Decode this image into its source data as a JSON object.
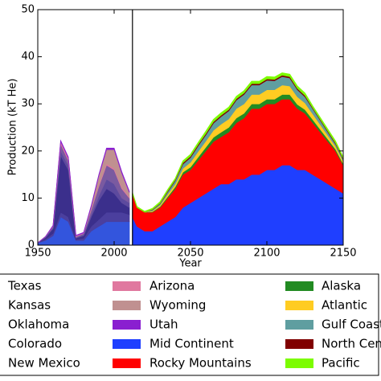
{
  "chart_data": {
    "type": "stacked_area",
    "xlabel": "Year",
    "ylabel": "Production (kT He)",
    "x": [
      1950,
      1955,
      1960,
      1965,
      1970,
      1975,
      1980,
      1985,
      1990,
      1995,
      2000,
      2005,
      2010,
      2012,
      2015,
      2020,
      2025,
      2030,
      2035,
      2040,
      2045,
      2050,
      2055,
      2060,
      2065,
      2070,
      2075,
      2080,
      2085,
      2090,
      2095,
      2100,
      2105,
      2110,
      2115,
      2120,
      2125,
      2130,
      2135,
      2140,
      2145,
      2150
    ],
    "xlim": [
      1950,
      2150
    ],
    "xticks": [
      1950,
      2000,
      2050,
      2100,
      2150
    ],
    "ylim": [
      0,
      50
    ],
    "yticks": [
      0,
      10,
      20,
      30,
      40,
      50
    ],
    "vline": 2012,
    "series": [
      {
        "name": "Texas",
        "color": "#3355dd",
        "values": [
          0.5,
          1,
          2,
          6,
          5,
          1,
          1,
          3,
          4,
          5,
          5,
          5,
          5,
          null,
          null,
          null,
          null,
          null,
          null,
          null,
          null,
          null,
          null,
          null,
          null,
          null,
          null,
          null,
          null,
          null,
          null,
          null,
          null,
          null,
          null,
          null,
          null,
          null,
          null,
          null,
          null,
          null
        ]
      },
      {
        "name": "Kansas",
        "color": "#4b3f9e",
        "values": [
          0,
          0.3,
          0.5,
          1,
          1,
          0.2,
          0.5,
          1,
          1.5,
          2,
          2,
          2,
          1.5,
          null,
          null,
          null,
          null,
          null,
          null,
          null,
          null,
          null,
          null,
          null,
          null,
          null,
          null,
          null,
          null,
          null,
          null,
          null,
          null,
          null,
          null,
          null,
          null,
          null,
          null,
          null,
          null,
          null
        ]
      },
      {
        "name": "Oklahoma",
        "color": "#3b2f8c",
        "values": [
          0,
          0.3,
          1,
          12,
          10,
          0.3,
          0.5,
          2,
          4,
          5,
          4,
          2,
          1.5,
          null,
          null,
          null,
          null,
          null,
          null,
          null,
          null,
          null,
          null,
          null,
          null,
          null,
          null,
          null,
          null,
          null,
          null,
          null,
          null,
          null,
          null,
          null,
          null,
          null,
          null,
          null,
          null,
          null
        ]
      },
      {
        "name": "Colorado",
        "color": "#5d4a9e",
        "values": [
          0,
          0.1,
          0.2,
          1,
          1,
          0.1,
          0.2,
          0.5,
          1,
          2,
          2,
          1,
          1,
          null,
          null,
          null,
          null,
          null,
          null,
          null,
          null,
          null,
          null,
          null,
          null,
          null,
          null,
          null,
          null,
          null,
          null,
          null,
          null,
          null,
          null,
          null,
          null,
          null,
          null,
          null,
          null,
          null
        ]
      },
      {
        "name": "New Mexico",
        "color": "#7a5aa0",
        "values": [
          0,
          0.1,
          0.3,
          1.5,
          1,
          0.2,
          0.3,
          1,
          2,
          3,
          3,
          2,
          1,
          null,
          null,
          null,
          null,
          null,
          null,
          null,
          null,
          null,
          null,
          null,
          null,
          null,
          null,
          null,
          null,
          null,
          null,
          null,
          null,
          null,
          null,
          null,
          null,
          null,
          null,
          null,
          null,
          null
        ]
      },
      {
        "name": "Arizona",
        "color": "#e0789f",
        "values": [
          0,
          0,
          0.1,
          0.5,
          0.5,
          0.2,
          0.1,
          0.2,
          0.3,
          0.3,
          0.3,
          0.3,
          0.2,
          null,
          null,
          null,
          null,
          null,
          null,
          null,
          null,
          null,
          null,
          null,
          null,
          null,
          null,
          null,
          null,
          null,
          null,
          null,
          null,
          null,
          null,
          null,
          null,
          null,
          null,
          null,
          null,
          null
        ]
      },
      {
        "name": "Wyoming",
        "color": "#c09090",
        "values": [
          0,
          0,
          0,
          0,
          0,
          0,
          0,
          0.5,
          2,
          3,
          4,
          3,
          1,
          null,
          null,
          null,
          null,
          null,
          null,
          null,
          null,
          null,
          null,
          null,
          null,
          null,
          null,
          null,
          null,
          null,
          null,
          null,
          null,
          null,
          null,
          null,
          null,
          null,
          null,
          null,
          null,
          null
        ]
      },
      {
        "name": "Utah",
        "color": "#8a1fd0",
        "values": [
          0,
          0,
          0.1,
          0.2,
          0.2,
          0.1,
          0.1,
          0.2,
          0.2,
          0.3,
          0.3,
          0.3,
          0.2,
          null,
          null,
          null,
          null,
          null,
          null,
          null,
          null,
          null,
          null,
          null,
          null,
          null,
          null,
          null,
          null,
          null,
          null,
          null,
          null,
          null,
          null,
          null,
          null,
          null,
          null,
          null,
          null,
          null
        ]
      },
      {
        "name": "Mid Continent",
        "color": "#1f3fff",
        "values": [
          null,
          null,
          null,
          null,
          null,
          null,
          null,
          null,
          null,
          null,
          null,
          null,
          null,
          6,
          4,
          3,
          3,
          4,
          5,
          6,
          8,
          9,
          10,
          11,
          12,
          13,
          13,
          14,
          14,
          15,
          15,
          16,
          16,
          17,
          17,
          16,
          16,
          15,
          14,
          13,
          12,
          11
        ]
      },
      {
        "name": "Rocky Mountains",
        "color": "#ff0000",
        "values": [
          null,
          null,
          null,
          null,
          null,
          null,
          null,
          null,
          null,
          null,
          null,
          null,
          null,
          5,
          4,
          4,
          4,
          4,
          5,
          6,
          7,
          7,
          8,
          9,
          10,
          10,
          11,
          12,
          13,
          14,
          14,
          14,
          14,
          14,
          14,
          13,
          12,
          11,
          10,
          9,
          8,
          6
        ]
      },
      {
        "name": "Alaska",
        "color": "#228b22",
        "values": [
          null,
          null,
          null,
          null,
          null,
          null,
          null,
          null,
          null,
          null,
          null,
          null,
          null,
          0,
          0,
          0,
          0.1,
          0.2,
          0.3,
          0.4,
          0.5,
          0.6,
          0.7,
          0.8,
          0.9,
          1,
          1,
          1,
          1,
          1,
          1,
          1,
          1,
          1,
          1,
          0.9,
          0.8,
          0.7,
          0.6,
          0.5,
          0.4,
          0.3
        ]
      },
      {
        "name": "Atlantic",
        "color": "#ffcc22",
        "values": [
          null,
          null,
          null,
          null,
          null,
          null,
          null,
          null,
          null,
          null,
          null,
          null,
          null,
          0,
          0,
          0,
          0.2,
          0.3,
          0.5,
          0.6,
          0.8,
          1,
          1.2,
          1.3,
          1.5,
          1.7,
          1.8,
          2,
          2,
          2,
          2,
          2,
          2,
          2,
          1.8,
          1.6,
          1.4,
          1.2,
          1,
          0.8,
          0.6,
          0.5
        ]
      },
      {
        "name": "Gulf Coast",
        "color": "#5f9ea0",
        "values": [
          null,
          null,
          null,
          null,
          null,
          null,
          null,
          null,
          null,
          null,
          null,
          null,
          null,
          0,
          0,
          0,
          0.2,
          0.3,
          0.5,
          0.7,
          0.9,
          1,
          1.2,
          1.3,
          1.5,
          1.6,
          1.7,
          1.8,
          2,
          2,
          2,
          2,
          1.9,
          1.8,
          1.7,
          1.5,
          1.3,
          1.1,
          0.9,
          0.7,
          0.5,
          0.4
        ]
      },
      {
        "name": "North Central",
        "color": "#800000",
        "values": [
          null,
          null,
          null,
          null,
          null,
          null,
          null,
          null,
          null,
          null,
          null,
          null,
          null,
          0,
          0,
          0,
          0.1,
          0.1,
          0.2,
          0.2,
          0.3,
          0.3,
          0.3,
          0.3,
          0.3,
          0.3,
          0.3,
          0.3,
          0.3,
          0.3,
          0.3,
          0.3,
          0.3,
          0.3,
          0.3,
          0.3,
          0.3,
          0.2,
          0.2,
          0.2,
          0.2,
          0.2
        ]
      },
      {
        "name": "Pacific",
        "color": "#7cfc00",
        "values": [
          null,
          null,
          null,
          null,
          null,
          null,
          null,
          null,
          null,
          null,
          null,
          null,
          null,
          0.2,
          0.2,
          0.2,
          0.2,
          0.3,
          0.3,
          0.3,
          0.4,
          0.4,
          0.4,
          0.5,
          0.5,
          0.5,
          0.5,
          0.5,
          0.5,
          0.5,
          0.5,
          0.5,
          0.5,
          0.5,
          0.5,
          0.5,
          0.5,
          0.4,
          0.4,
          0.4,
          0.4,
          0.3
        ]
      }
    ]
  }
}
